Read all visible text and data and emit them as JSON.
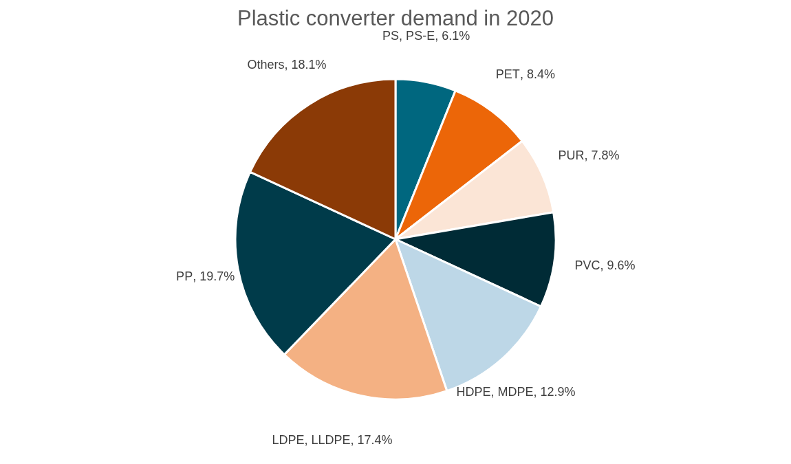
{
  "chart_data": {
    "type": "pie",
    "title": "Plastic converter demand in 2020",
    "categories": [
      "PS, PS-E",
      "PET",
      "PUR",
      "PVC",
      "HDPE, MDPE",
      "LDPE, LLDPE",
      "PP",
      "Others"
    ],
    "values": [
      6.1,
      8.4,
      7.8,
      9.6,
      12.9,
      17.4,
      19.7,
      18.1
    ],
    "colors": [
      "#00677f",
      "#ec6608",
      "#fbe5d6",
      "#002b36",
      "#bdd7e7",
      "#f4b183",
      "#003b4a",
      "#8b3a06"
    ],
    "value_labels": [
      ", 6.1%",
      ", 8.4%",
      ", 7.8%",
      ", 9.6%",
      ", 12.9%",
      ", 17.4%",
      ", 19.7%",
      ", 18.1%"
    ],
    "legend": false
  }
}
